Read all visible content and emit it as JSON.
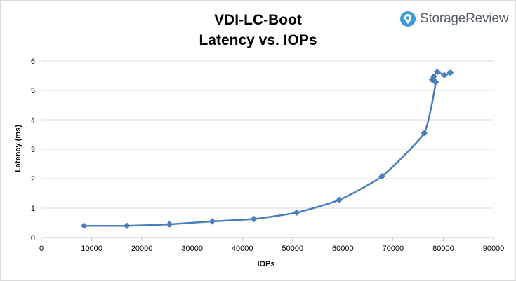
{
  "header": {
    "title_line1": "VDI-LC-Boot",
    "title_line2": "Latency vs. IOPs"
  },
  "brand": {
    "name": "StorageReview",
    "icon": "storagereview-logo-icon",
    "accent_color": "#3d9bd8",
    "text_color": "#555c66"
  },
  "chart_data": {
    "type": "scatter",
    "title": "VDI-LC-Boot Latency vs. IOPs",
    "xlabel": "IOPs",
    "ylabel": "Latency (ms)",
    "xlim": [
      0,
      90000
    ],
    "ylim": [
      0,
      6
    ],
    "x_ticks": [
      0,
      10000,
      20000,
      30000,
      40000,
      50000,
      60000,
      70000,
      80000,
      90000
    ],
    "y_ticks": [
      0,
      1,
      2,
      3,
      4,
      5,
      6
    ],
    "grid": true,
    "legend": false,
    "series_color": "#4a7ebb",
    "series": [
      {
        "line": "smoothed",
        "marker": "diamond",
        "points": [
          {
            "x": 8500,
            "y": 0.4
          },
          {
            "x": 17000,
            "y": 0.4
          },
          {
            "x": 25500,
            "y": 0.45
          },
          {
            "x": 34000,
            "y": 0.55
          },
          {
            "x": 42300,
            "y": 0.63
          },
          {
            "x": 50800,
            "y": 0.85
          },
          {
            "x": 59300,
            "y": 1.28
          },
          {
            "x": 67800,
            "y": 2.08
          },
          {
            "x": 76200,
            "y": 3.55
          },
          {
            "x": 78500,
            "y": 5.28
          },
          {
            "x": 77800,
            "y": 5.36
          },
          {
            "x": 78100,
            "y": 5.47
          },
          {
            "x": 78800,
            "y": 5.63
          },
          {
            "x": 80200,
            "y": 5.52
          },
          {
            "x": 81400,
            "y": 5.6
          }
        ]
      }
    ]
  }
}
